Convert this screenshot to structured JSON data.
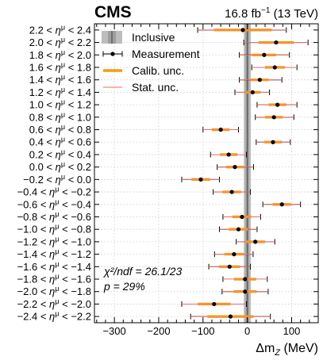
{
  "chart_data": {
    "type": "scatter",
    "header": {
      "experiment": "CMS",
      "luminosity": "16.8 fb",
      "lumi_unit_exponent": "−1",
      "energy": "(13 TeV)"
    },
    "xlabel": "Δm",
    "xlabel_subscript": "Z",
    "xlabel_unit": "(MeV)",
    "xlim": [
      -345,
      160
    ],
    "xticks": [
      -300,
      -200,
      -100,
      0,
      100
    ],
    "grid": true,
    "legend": {
      "placement": "top-left",
      "entries": [
        "Inclusive",
        "Measurement",
        "Calib. unc.",
        "Stat. unc."
      ]
    },
    "inclusive": {
      "center": 0,
      "band_inner": 4,
      "band_outer": 8
    },
    "colors": {
      "inclusive_band": "#bdbdbd",
      "inclusive_inner": "#9e9e9e",
      "calib": "#f39c12",
      "stat": "#ff7f7f",
      "measurement": "#000000"
    },
    "annotation": {
      "chi2": "χ²/ndf = 26.1/23",
      "p": "p = 29%"
    },
    "categories": [
      "2.2 < η^μ < 2.4",
      "2.0 < η^μ < 2.2",
      "1.8 < η^μ < 2.0",
      "1.6 < η^μ < 1.8",
      "1.4 < η^μ < 1.6",
      "1.2 < η^μ < 1.4",
      "1.0 < η^μ < 1.2",
      "0.8 < η^μ < 1.0",
      "0.6 < η^μ < 0.8",
      "0.4 < η^μ < 0.6",
      "0.2 < η^μ < 0.4",
      "0.0 < η^μ < 0.2",
      "−0.2 < η^μ < 0.0",
      "−0.4 < η^μ < −0.2",
      "−0.6 < η^μ < −0.4",
      "−0.8 < η^μ < −0.6",
      "−1.0 < η^μ < −0.8",
      "−1.2 < η^μ < −1.0",
      "−1.4 < η^μ < −1.2",
      "−1.6 < η^μ < −1.4",
      "−1.8 < η^μ < −1.6",
      "−2.0 < η^μ < −1.8",
      "−2.2 < η^μ < −2.0",
      "−2.4 < η^μ < −2.2"
    ],
    "points": [
      {
        "value": -10,
        "total_lo": -112,
        "total_hi": 88,
        "calib_lo": -75,
        "calib_hi": 55
      },
      {
        "value": 65,
        "total_lo": -8,
        "total_hi": 137,
        "calib_lo": 25,
        "calib_hi": 105
      },
      {
        "value": 38,
        "total_lo": -18,
        "total_hi": 95,
        "calib_lo": 10,
        "calib_hi": 65
      },
      {
        "value": 62,
        "total_lo": 10,
        "total_hi": 112,
        "calib_lo": 40,
        "calib_hi": 85
      },
      {
        "value": 28,
        "total_lo": -18,
        "total_hi": 78,
        "calib_lo": 8,
        "calib_hi": 48
      },
      {
        "value": 12,
        "total_lo": -28,
        "total_hi": 50,
        "calib_lo": -5,
        "calib_hi": 30
      },
      {
        "value": 68,
        "total_lo": 22,
        "total_hi": 112,
        "calib_lo": 48,
        "calib_hi": 88
      },
      {
        "value": 60,
        "total_lo": 18,
        "total_hi": 105,
        "calib_lo": 40,
        "calib_hi": 80
      },
      {
        "value": -60,
        "total_lo": -100,
        "total_hi": -20,
        "calib_lo": -80,
        "calib_hi": -40
      },
      {
        "value": 58,
        "total_lo": 20,
        "total_hi": 97,
        "calib_lo": 38,
        "calib_hi": 78
      },
      {
        "value": -42,
        "total_lo": -83,
        "total_hi": -2,
        "calib_lo": -62,
        "calib_hi": -22
      },
      {
        "value": -28,
        "total_lo": -68,
        "total_hi": 14,
        "calib_lo": -48,
        "calib_hi": -8
      },
      {
        "value": -105,
        "total_lo": -148,
        "total_hi": -63,
        "calib_lo": -126,
        "calib_hi": -84
      },
      {
        "value": -35,
        "total_lo": -77,
        "total_hi": 7,
        "calib_lo": -56,
        "calib_hi": -14
      },
      {
        "value": 78,
        "total_lo": 35,
        "total_hi": 120,
        "calib_lo": 57,
        "calib_hi": 99
      },
      {
        "value": -12,
        "total_lo": -55,
        "total_hi": 30,
        "calib_lo": -34,
        "calib_hi": 9
      },
      {
        "value": -20,
        "total_lo": -63,
        "total_hi": 22,
        "calib_lo": -42,
        "calib_hi": 1
      },
      {
        "value": 18,
        "total_lo": -25,
        "total_hi": 62,
        "calib_lo": -4,
        "calib_hi": 40
      },
      {
        "value": -30,
        "total_lo": -74,
        "total_hi": 13,
        "calib_lo": -52,
        "calib_hi": -8
      },
      {
        "value": -40,
        "total_lo": -87,
        "total_hi": 7,
        "calib_lo": -64,
        "calib_hi": -16
      },
      {
        "value": -5,
        "total_lo": -55,
        "total_hi": 45,
        "calib_lo": -30,
        "calib_hi": 20
      },
      {
        "value": -5,
        "total_lo": -57,
        "total_hi": 47,
        "calib_lo": -31,
        "calib_hi": 21
      },
      {
        "value": -75,
        "total_lo": -148,
        "total_hi": -2,
        "calib_lo": -112,
        "calib_hi": -38
      },
      {
        "value": -38,
        "total_lo": -128,
        "total_hi": 52,
        "calib_lo": -90,
        "calib_hi": 14
      }
    ]
  }
}
